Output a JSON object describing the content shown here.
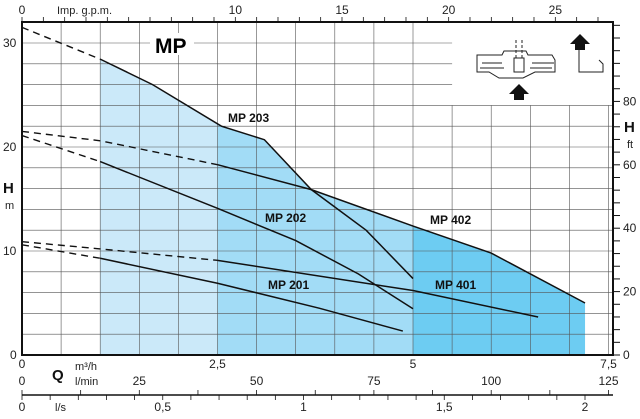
{
  "chart_data": {
    "type": "line",
    "title": "MP",
    "x_primary": {
      "label": "Q",
      "unit": "m³/h",
      "range": [
        0,
        7.5
      ],
      "ticks": [
        {
          "v": 0,
          "t": "0"
        },
        {
          "v": 2.5,
          "t": "2,5"
        },
        {
          "v": 5,
          "t": "5"
        },
        {
          "v": 7.5,
          "t": "7,5"
        }
      ]
    },
    "x_lmin": {
      "unit": "l/min",
      "ticks": [
        {
          "v": 0,
          "t": "0"
        },
        {
          "v": 25,
          "t": "25"
        },
        {
          "v": 50,
          "t": "50"
        },
        {
          "v": 75,
          "t": "75"
        },
        {
          "v": 100,
          "t": "100"
        },
        {
          "v": 125,
          "t": "125"
        }
      ]
    },
    "x_ls": {
      "unit": "l/s",
      "ticks": [
        {
          "v": 0,
          "t": "0"
        },
        {
          "v": 0.5,
          "t": "0,5"
        },
        {
          "v": 1,
          "t": "1"
        },
        {
          "v": 1.5,
          "t": "1,5"
        },
        {
          "v": 2,
          "t": "2"
        }
      ]
    },
    "x_top": {
      "unit": "Imp. g.p.m.",
      "ticks": [
        {
          "v": 0,
          "t": "0"
        },
        {
          "v": 10,
          "t": "10"
        },
        {
          "v": 15,
          "t": "15"
        },
        {
          "v": 20,
          "t": "20"
        },
        {
          "v": 25,
          "t": "25"
        }
      ]
    },
    "y_left": {
      "label": "H",
      "unit": "m",
      "range": [
        0,
        32
      ],
      "ticks": [
        {
          "v": 0,
          "t": "0"
        },
        {
          "v": 10,
          "t": "10"
        },
        {
          "v": 20,
          "t": "20"
        },
        {
          "v": 30,
          "t": "30"
        }
      ]
    },
    "y_right": {
      "label": "H",
      "unit": "ft",
      "ticks": [
        {
          "v": 0,
          "t": "0"
        },
        {
          "v": 20,
          "t": "20"
        },
        {
          "v": 40,
          "t": "40"
        },
        {
          "v": 60,
          "t": "60"
        },
        {
          "v": 80,
          "t": "80"
        }
      ]
    },
    "grid": true,
    "series": [
      {
        "name": "MP 203",
        "dashed": [
          [
            0,
            31.5
          ],
          [
            1,
            28.45
          ]
        ],
        "solid": [
          [
            1,
            28.45
          ],
          [
            1.67,
            26
          ],
          [
            2.55,
            22
          ],
          [
            3.1,
            20.7
          ],
          [
            3.7,
            15.9
          ],
          [
            4.4,
            12.0
          ],
          [
            5,
            7.35
          ]
        ]
      },
      {
        "name": "MP 202",
        "dashed": [
          [
            0,
            21.1
          ],
          [
            1,
            18.6
          ]
        ],
        "solid": [
          [
            1,
            18.6
          ],
          [
            2.5,
            14.1
          ],
          [
            3.5,
            11.0
          ],
          [
            4.3,
            7.8
          ],
          [
            5,
            4.45
          ]
        ]
      },
      {
        "name": "MP 402",
        "dashed": [
          [
            0,
            21.5
          ],
          [
            1,
            20.6
          ],
          [
            2.5,
            18.3
          ]
        ],
        "solid": [
          [
            2.5,
            18.3
          ],
          [
            3.7,
            15.9
          ],
          [
            5,
            12.4
          ],
          [
            6,
            9.8
          ],
          [
            7.2,
            5.0
          ]
        ]
      },
      {
        "name": "MP 201",
        "dashed": [
          [
            0,
            10.6
          ],
          [
            1,
            9.3
          ]
        ],
        "solid": [
          [
            1,
            9.3
          ],
          [
            2.5,
            6.9
          ],
          [
            3.8,
            4.5
          ],
          [
            4.87,
            2.3
          ]
        ]
      },
      {
        "name": "MP 401",
        "dashed": [
          [
            0,
            10.9
          ],
          [
            1,
            10.2
          ],
          [
            2.5,
            9.1
          ]
        ],
        "solid": [
          [
            2.5,
            9.1
          ],
          [
            5,
            6.2
          ],
          [
            6.6,
            3.65
          ]
        ]
      }
    ],
    "shaded_bands": [
      {
        "from": 1,
        "to": 2.5,
        "color": "#cbe9f9"
      },
      {
        "from": 2.5,
        "to": 5,
        "color": "#a2dcf6"
      },
      {
        "from": 5,
        "to": 7.2,
        "color": "#6dccf2"
      }
    ]
  }
}
